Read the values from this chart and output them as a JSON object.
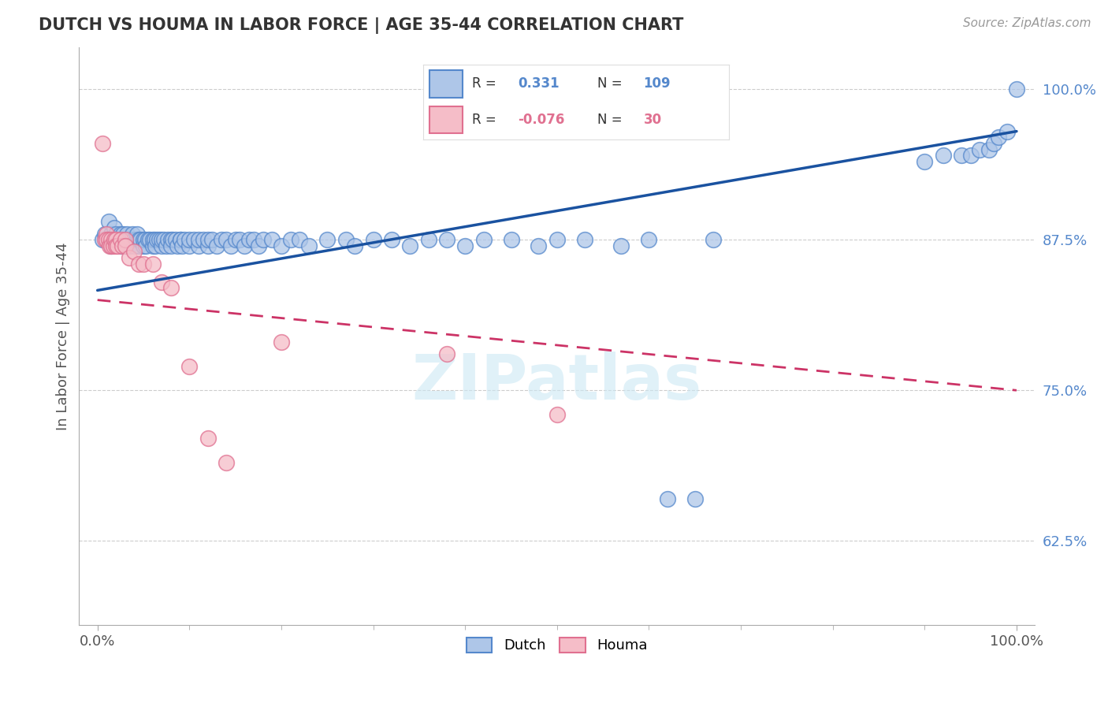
{
  "title": "DUTCH VS HOUMA IN LABOR FORCE | AGE 35-44 CORRELATION CHART",
  "source": "Source: ZipAtlas.com",
  "ylabel": "In Labor Force | Age 35-44",
  "xlim": [
    -0.02,
    1.02
  ],
  "ylim": [
    0.555,
    1.035
  ],
  "yticks": [
    0.625,
    0.75,
    0.875,
    1.0
  ],
  "ytick_labels": [
    "62.5%",
    "75.0%",
    "87.5%",
    "100.0%"
  ],
  "xtick_labels": [
    "0.0%",
    "100.0%"
  ],
  "watermark": "ZIPatlas",
  "legend_dutch_R": "0.331",
  "legend_dutch_N": "109",
  "legend_houma_R": "-0.076",
  "legend_houma_N": "30",
  "dutch_color": "#aec6e8",
  "dutch_edge_color": "#5588cc",
  "houma_color": "#f5bdc8",
  "houma_edge_color": "#e07090",
  "trend_dutch_color": "#1a52a0",
  "trend_houma_color": "#cc3366",
  "background_color": "#ffffff",
  "grid_color": "#cccccc",
  "title_color": "#333333",
  "dutch_x": [
    0.005,
    0.008,
    0.01,
    0.012,
    0.015,
    0.015,
    0.017,
    0.018,
    0.02,
    0.02,
    0.022,
    0.025,
    0.025,
    0.027,
    0.028,
    0.03,
    0.03,
    0.032,
    0.033,
    0.035,
    0.035,
    0.037,
    0.038,
    0.04,
    0.04,
    0.042,
    0.043,
    0.045,
    0.045,
    0.047,
    0.05,
    0.05,
    0.052,
    0.053,
    0.055,
    0.057,
    0.06,
    0.06,
    0.062,
    0.063,
    0.065,
    0.067,
    0.07,
    0.07,
    0.072,
    0.075,
    0.077,
    0.08,
    0.08,
    0.082,
    0.085,
    0.087,
    0.09,
    0.09,
    0.092,
    0.095,
    0.1,
    0.1,
    0.105,
    0.11,
    0.11,
    0.115,
    0.12,
    0.12,
    0.125,
    0.13,
    0.135,
    0.14,
    0.145,
    0.15,
    0.155,
    0.16,
    0.165,
    0.17,
    0.175,
    0.18,
    0.19,
    0.2,
    0.21,
    0.22,
    0.23,
    0.25,
    0.27,
    0.28,
    0.3,
    0.32,
    0.34,
    0.36,
    0.38,
    0.4,
    0.42,
    0.45,
    0.48,
    0.5,
    0.53,
    0.57,
    0.6,
    0.62,
    0.65,
    0.67,
    0.9,
    0.92,
    0.94,
    0.95,
    0.96,
    0.97,
    0.975,
    0.98,
    0.99,
    1.0
  ],
  "dutch_y": [
    0.875,
    0.88,
    0.875,
    0.89,
    0.87,
    0.88,
    0.875,
    0.885,
    0.875,
    0.88,
    0.875,
    0.88,
    0.87,
    0.875,
    0.88,
    0.875,
    0.87,
    0.88,
    0.875,
    0.87,
    0.875,
    0.875,
    0.88,
    0.87,
    0.875,
    0.875,
    0.88,
    0.87,
    0.875,
    0.875,
    0.87,
    0.875,
    0.875,
    0.87,
    0.875,
    0.875,
    0.87,
    0.875,
    0.875,
    0.87,
    0.875,
    0.875,
    0.87,
    0.875,
    0.875,
    0.87,
    0.875,
    0.875,
    0.87,
    0.875,
    0.875,
    0.87,
    0.875,
    0.875,
    0.87,
    0.875,
    0.87,
    0.875,
    0.875,
    0.87,
    0.875,
    0.875,
    0.87,
    0.875,
    0.875,
    0.87,
    0.875,
    0.875,
    0.87,
    0.875,
    0.875,
    0.87,
    0.875,
    0.875,
    0.87,
    0.875,
    0.875,
    0.87,
    0.875,
    0.875,
    0.87,
    0.875,
    0.875,
    0.87,
    0.875,
    0.875,
    0.87,
    0.875,
    0.875,
    0.87,
    0.875,
    0.875,
    0.87,
    0.875,
    0.875,
    0.87,
    0.875,
    0.66,
    0.66,
    0.875,
    0.94,
    0.945,
    0.945,
    0.945,
    0.95,
    0.95,
    0.955,
    0.96,
    0.965,
    1.0
  ],
  "houma_x": [
    0.005,
    0.008,
    0.01,
    0.01,
    0.012,
    0.013,
    0.015,
    0.015,
    0.017,
    0.018,
    0.02,
    0.02,
    0.022,
    0.025,
    0.027,
    0.03,
    0.03,
    0.035,
    0.04,
    0.045,
    0.05,
    0.06,
    0.07,
    0.08,
    0.1,
    0.12,
    0.14,
    0.2,
    0.38,
    0.5
  ],
  "houma_y": [
    0.955,
    0.875,
    0.88,
    0.875,
    0.875,
    0.87,
    0.875,
    0.87,
    0.87,
    0.875,
    0.875,
    0.87,
    0.87,
    0.875,
    0.87,
    0.875,
    0.87,
    0.86,
    0.865,
    0.855,
    0.855,
    0.855,
    0.84,
    0.835,
    0.77,
    0.71,
    0.69,
    0.79,
    0.78,
    0.73
  ],
  "trend_dutch_x0": 0.0,
  "trend_dutch_y0": 0.833,
  "trend_dutch_x1": 1.0,
  "trend_dutch_y1": 0.965,
  "trend_houma_x0": 0.0,
  "trend_houma_y0": 0.825,
  "trend_houma_x1": 1.0,
  "trend_houma_y1": 0.75
}
